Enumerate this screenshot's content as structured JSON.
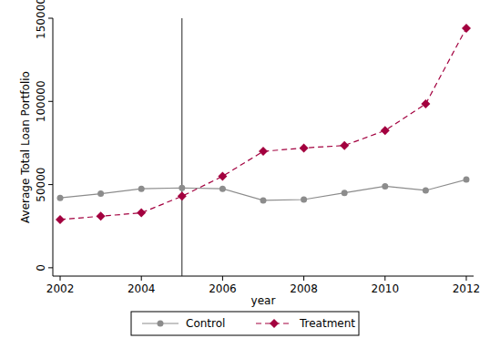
{
  "chart_data": {
    "type": "line",
    "x_label": "year",
    "y_label": "Average Total Loan Portfolio",
    "x": [
      2002,
      2003,
      2004,
      2005,
      2006,
      2007,
      2008,
      2009,
      2010,
      2011,
      2012
    ],
    "series": [
      {
        "name": "Control",
        "color": "#8c8c8c",
        "marker": "circle",
        "line_style": "solid",
        "values": [
          42000,
          44500,
          47500,
          48000,
          47500,
          40500,
          41000,
          45000,
          49000,
          46500,
          53000
        ]
      },
      {
        "name": "Treatment",
        "color": "#a3003f",
        "marker": "diamond",
        "line_style": "dashed",
        "values": [
          29000,
          31000,
          33000,
          43000,
          55000,
          70000,
          72000,
          73500,
          82500,
          98500,
          144000
        ]
      }
    ],
    "vline": 2005,
    "xlim": [
      2001.82,
      2012.18
    ],
    "xticks": [
      2002,
      2004,
      2006,
      2008,
      2010,
      2012
    ],
    "ylim": [
      -5000,
      150000
    ],
    "yticks": [
      0,
      50000,
      100000,
      150000
    ],
    "grid": false,
    "legend": "bottom"
  }
}
